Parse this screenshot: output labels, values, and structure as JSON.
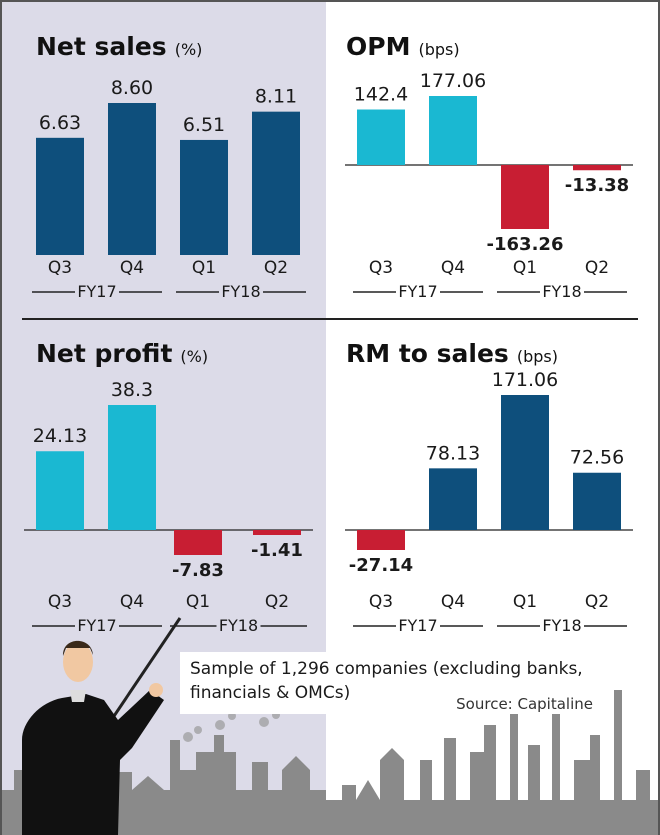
{
  "colors": {
    "panel_bg": "#dcdbe8",
    "dark_bar": "#0e4f7c",
    "light_bar": "#1ab8d2",
    "negative_bar": "#c81e33",
    "city": "#8a8a8a"
  },
  "chart_data": [
    {
      "type": "bar",
      "id": "net_sales",
      "title": "Net sales",
      "unit": "(%)",
      "categories": [
        "Q3",
        "Q4",
        "Q1",
        "Q2"
      ],
      "values": [
        6.63,
        8.6,
        6.51,
        8.11
      ],
      "labels": [
        "6.63",
        "8.60",
        "6.51",
        "8.11"
      ],
      "groups": [
        "FY17",
        "FY18"
      ],
      "ylim": [
        0,
        8.6
      ]
    },
    {
      "type": "bar",
      "id": "opm",
      "title": "OPM",
      "unit": "(bps)",
      "categories": [
        "Q3",
        "Q4",
        "Q1",
        "Q2"
      ],
      "values": [
        142.4,
        177.06,
        -163.26,
        -13.38
      ],
      "labels": [
        "142.4",
        "177.06",
        "-163.26",
        "-13.38"
      ],
      "groups": [
        "FY17",
        "FY18"
      ],
      "ylim": [
        -163.26,
        177.06
      ]
    },
    {
      "type": "bar",
      "id": "net_profit",
      "title": "Net profit",
      "unit": "(%)",
      "categories": [
        "Q3",
        "Q4",
        "Q1",
        "Q2"
      ],
      "values": [
        24.13,
        38.3,
        -7.83,
        -1.41
      ],
      "labels": [
        "24.13",
        "38.3",
        "-7.83",
        "-1.41"
      ],
      "groups": [
        "FY17",
        "FY18"
      ],
      "ylim": [
        -7.83,
        38.3
      ]
    },
    {
      "type": "bar",
      "id": "rm_to_sales",
      "title": "RM to sales",
      "unit": "(bps)",
      "categories": [
        "Q3",
        "Q4",
        "Q1",
        "Q2"
      ],
      "values": [
        -27.14,
        78.13,
        171.06,
        72.56
      ],
      "labels": [
        "-27.14",
        "78.13",
        "171.06",
        "72.56"
      ],
      "groups": [
        "FY17",
        "FY18"
      ],
      "ylim": [
        -27.14,
        171.06
      ]
    }
  ],
  "footer": {
    "note": [
      "Sample of 1,296 companies (excluding banks,",
      "financials & OMCs)"
    ],
    "source": "Source: Capitaline"
  }
}
